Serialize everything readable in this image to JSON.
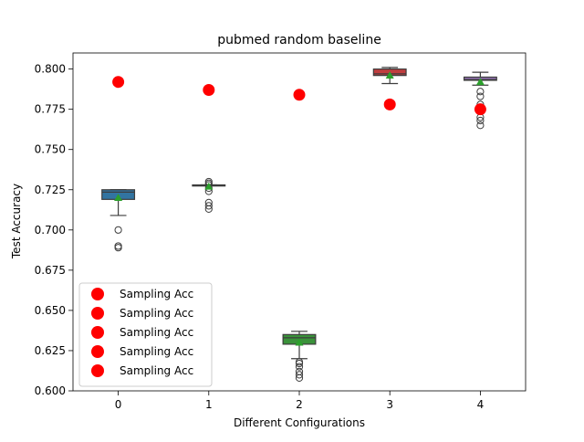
{
  "chart_data": {
    "type": "box",
    "title": "pubmed random baseline",
    "xlabel": "Different Configurations",
    "ylabel": "Test Accuracy",
    "categories": [
      "0",
      "1",
      "2",
      "3",
      "4"
    ],
    "ylim": [
      0.6,
      0.81
    ],
    "yticks": [
      "0.600",
      "0.625",
      "0.650",
      "0.675",
      "0.700",
      "0.725",
      "0.750",
      "0.775",
      "0.800"
    ],
    "ytick_values": [
      0.6,
      0.625,
      0.65,
      0.675,
      0.7,
      0.725,
      0.75,
      0.775,
      0.8
    ],
    "boxes": [
      {
        "category": "0",
        "color": "#3274a1",
        "q1": 0.719,
        "median": 0.7235,
        "q3": 0.725,
        "whisker_low": 0.709,
        "whisker_high": 0.725,
        "mean": 0.72,
        "outliers": [
          0.7,
          0.69,
          0.689
        ]
      },
      {
        "category": "1",
        "color": "#e1812c",
        "q1": 0.7275,
        "median": 0.7278,
        "q3": 0.728,
        "whisker_low": 0.7275,
        "whisker_high": 0.728,
        "mean": 0.727,
        "outliers": [
          0.73,
          0.729,
          0.728,
          0.726,
          0.724,
          0.717,
          0.715,
          0.713
        ]
      },
      {
        "category": "2",
        "color": "#3a923a",
        "q1": 0.629,
        "median": 0.633,
        "q3": 0.635,
        "whisker_low": 0.62,
        "whisker_high": 0.637,
        "mean": 0.63,
        "outliers": [
          0.618,
          0.617,
          0.615,
          0.612,
          0.61,
          0.608
        ]
      },
      {
        "category": "3",
        "color": "#c03d3e",
        "q1": 0.796,
        "median": 0.797,
        "q3": 0.8,
        "whisker_low": 0.791,
        "whisker_high": 0.801,
        "mean": 0.796,
        "outliers": [
          0.778
        ]
      },
      {
        "category": "4",
        "color": "#9372b2",
        "q1": 0.793,
        "median": 0.7935,
        "q3": 0.795,
        "whisker_low": 0.79,
        "whisker_high": 0.798,
        "mean": 0.792,
        "outliers": [
          0.786,
          0.783,
          0.778,
          0.775,
          0.77,
          0.768,
          0.765
        ]
      }
    ],
    "sampling_acc": {
      "name": "Sampling Acc",
      "color": "#ff0000",
      "points": [
        {
          "x": "0",
          "y": 0.792
        },
        {
          "x": "1",
          "y": 0.787
        },
        {
          "x": "2",
          "y": 0.784
        },
        {
          "x": "3",
          "y": 0.778
        },
        {
          "x": "4",
          "y": 0.775
        }
      ]
    },
    "legend": {
      "position": "lower-left",
      "entries": [
        "Sampling Acc",
        "Sampling Acc",
        "Sampling Acc",
        "Sampling Acc",
        "Sampling Acc"
      ]
    },
    "mean_marker_color": "#2ca02c",
    "grid": false
  }
}
